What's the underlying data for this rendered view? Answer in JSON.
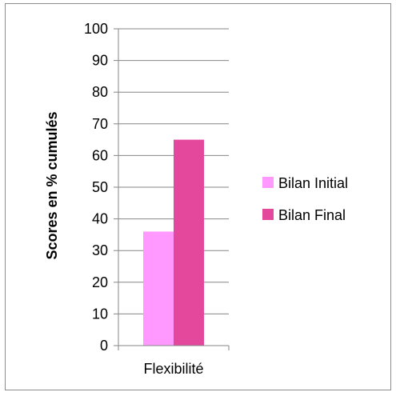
{
  "chart_data": {
    "type": "bar",
    "title": "",
    "categories": [
      "Flexibilité"
    ],
    "series": [
      {
        "name": "Bilan Initial",
        "values": [
          36
        ],
        "color": "#ff99ff"
      },
      {
        "name": "Bilan Final",
        "values": [
          65
        ],
        "color": "#e3489d"
      }
    ],
    "xlabel": "",
    "ylabel": "Scores en % cumulés",
    "ylim": [
      0,
      100
    ],
    "yticks": [
      "0",
      "10",
      "20",
      "30",
      "40",
      "50",
      "60",
      "70",
      "80",
      "90",
      "100"
    ],
    "grid": true,
    "legend_position": "right"
  }
}
